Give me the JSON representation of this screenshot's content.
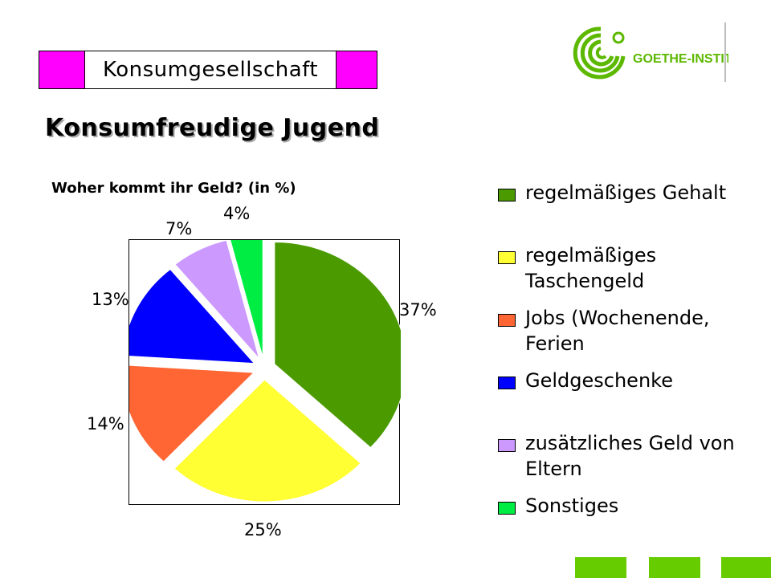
{
  "theme": {
    "accent": "#ff00ff",
    "nav_color": "#66cc00"
  },
  "header": {
    "label": "Konsumgesellschaft"
  },
  "logo": {
    "text": "GOETHE-INSTITUT",
    "color": "#5cb800"
  },
  "page_title": "Konsumfreudige Jugend",
  "chart_data": {
    "type": "pie",
    "title": "Woher kommt ihr Geld? (in %)",
    "slices": [
      {
        "name": "regelmäßiges Gehalt",
        "value": 37,
        "label": "37%",
        "color": "#4a9a00"
      },
      {
        "name": "regelmäßiges Taschengeld",
        "value": 25,
        "label": "25%",
        "color": "#ffff33"
      },
      {
        "name": "Jobs (Wochenende, Ferien",
        "value": 14,
        "label": "14%",
        "color": "#ff6633"
      },
      {
        "name": "Geldgeschenke",
        "value": 13,
        "label": "13%",
        "color": "#0000ff"
      },
      {
        "name": "zusätzliches Geld von Eltern",
        "value": 7,
        "label": "7%",
        "color": "#cc99ff"
      },
      {
        "name": "Sonstiges",
        "value": 4,
        "label": "4%",
        "color": "#00ee44"
      }
    ],
    "legend_position": "right",
    "exploded": true
  },
  "nav": {
    "button_count": 3
  }
}
